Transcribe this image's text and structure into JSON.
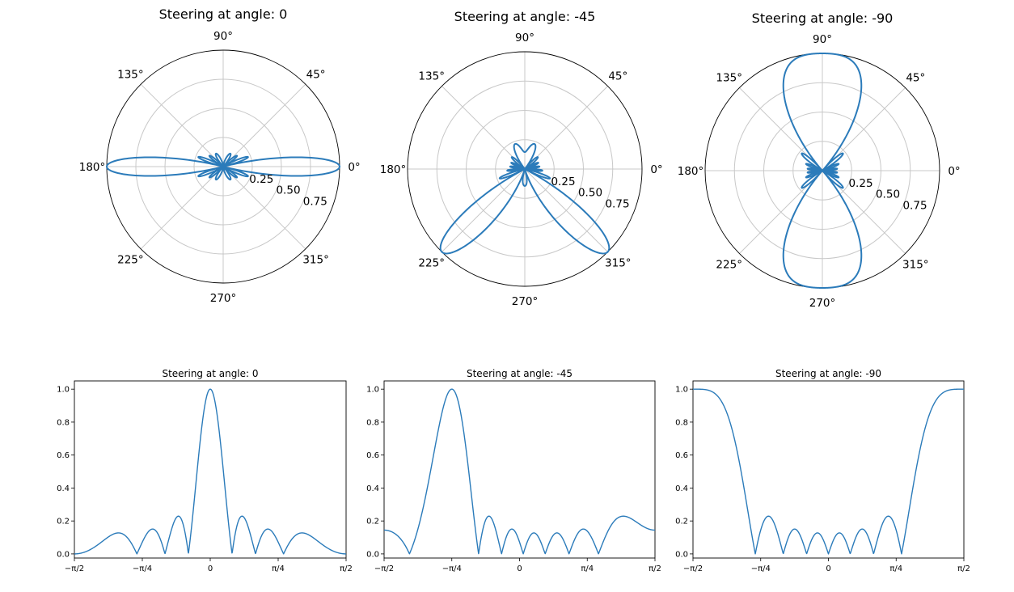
{
  "chart_data": [
    {
      "type": "polar",
      "title": "Steering at angle: 0",
      "steer_deg": 0,
      "theta_labels": [
        "0°",
        "45°",
        "90°",
        "135°",
        "180°",
        "225°",
        "270°",
        "315°"
      ],
      "r_ticks": [
        "0.25",
        "0.50",
        "0.75"
      ],
      "rlim": [
        0,
        1
      ],
      "series_color": "#2b7bba",
      "grid": true
    },
    {
      "type": "polar",
      "title": "Steering at angle: -45",
      "steer_deg": -45,
      "theta_labels": [
        "0°",
        "45°",
        "90°",
        "135°",
        "180°",
        "225°",
        "270°",
        "315°"
      ],
      "r_ticks": [
        "0.25",
        "0.50",
        "0.75"
      ],
      "rlim": [
        0,
        1
      ],
      "series_color": "#2b7bba",
      "grid": true
    },
    {
      "type": "polar",
      "title": "Steering at angle: -90",
      "steer_deg": -90,
      "theta_labels": [
        "0°",
        "45°",
        "90°",
        "135°",
        "180°",
        "225°",
        "270°",
        "315°"
      ],
      "r_ticks": [
        "0.25",
        "0.50",
        "0.75"
      ],
      "rlim": [
        0,
        1
      ],
      "series_color": "#2b7bba",
      "grid": true
    },
    {
      "type": "line",
      "title": "Steering at angle: 0",
      "steer_deg": 0,
      "x_tick_labels": [
        "−π/2",
        "−π/4",
        "0",
        "π/4",
        "π/2"
      ],
      "y_tick_labels": [
        "0.0",
        "0.2",
        "0.4",
        "0.6",
        "0.8",
        "1.0"
      ],
      "xlim": [
        -1.5708,
        1.5708
      ],
      "ylim": [
        -0.025,
        1.05
      ],
      "series_color": "#1f77b4",
      "grid": false
    },
    {
      "type": "line",
      "title": "Steering at angle: -45",
      "steer_deg": -45,
      "x_tick_labels": [
        "−π/2",
        "−π/4",
        "0",
        "π/4",
        "π/2"
      ],
      "y_tick_labels": [
        "0.0",
        "0.2",
        "0.4",
        "0.6",
        "0.8",
        "1.0"
      ],
      "xlim": [
        -1.5708,
        1.5708
      ],
      "ylim": [
        -0.025,
        1.05
      ],
      "series_color": "#1f77b4",
      "grid": false
    },
    {
      "type": "line",
      "title": "Steering at angle: -90",
      "steer_deg": -90,
      "x_tick_labels": [
        "−π/2",
        "−π/4",
        "0",
        "π/4",
        "π/2"
      ],
      "y_tick_labels": [
        "0.0",
        "0.2",
        "0.4",
        "0.6",
        "0.8",
        "1.0"
      ],
      "xlim": [
        -1.5708,
        1.5708
      ],
      "ylim": [
        -0.025,
        1.05
      ],
      "series_color": "#1f77b4",
      "grid": false
    }
  ]
}
